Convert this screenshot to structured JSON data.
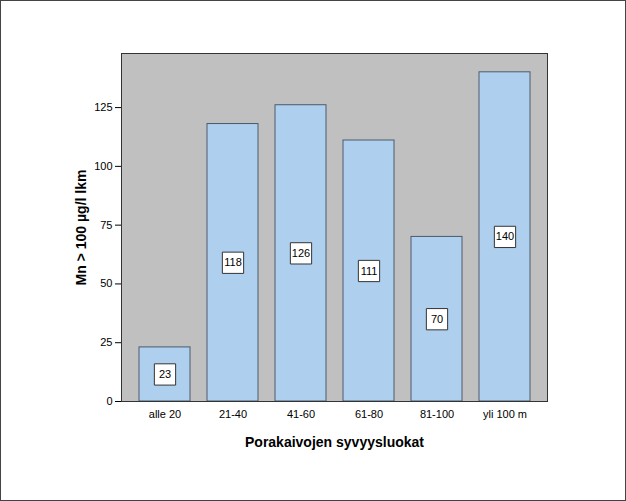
{
  "chart_data": {
    "type": "bar",
    "categories": [
      "alle 20",
      "21-40",
      "41-60",
      "61-80",
      "81-100",
      "yli 100 m"
    ],
    "values": [
      23,
      118,
      126,
      111,
      70,
      140
    ],
    "color": "#aed0ee",
    "xlabel": "Porakaivojen syvyysluokat",
    "ylabel": "Mn > 100 µg/l lkm",
    "ylim": [
      0,
      148
    ],
    "yticks": [
      0,
      25,
      50,
      75,
      100,
      125
    ],
    "grid": false,
    "data_labels": true
  }
}
